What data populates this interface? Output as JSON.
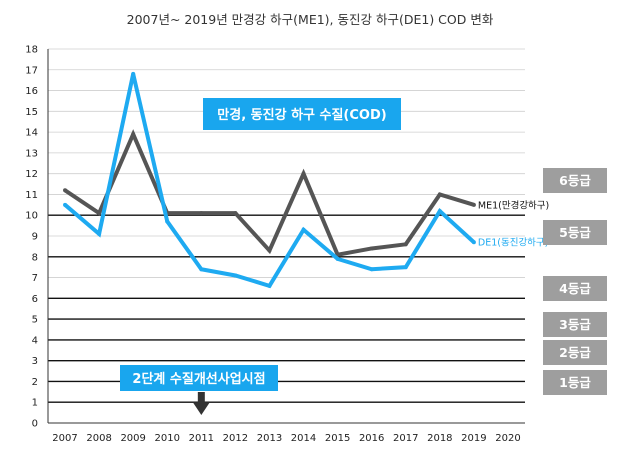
{
  "chart_data": {
    "type": "line",
    "title": "2007년~ 2019년 만경강 하구(ME1), 동진강 하구(DE1) COD 변화",
    "xlabel": "",
    "ylabel": "",
    "categories": [
      "2007",
      "2008",
      "2009",
      "2010",
      "2011",
      "2012",
      "2013",
      "2014",
      "2015",
      "2016",
      "2017",
      "2018",
      "2019",
      "2020"
    ],
    "ylim": [
      0,
      18
    ],
    "yticks": [
      0,
      1,
      2,
      3,
      4,
      5,
      6,
      7,
      8,
      9,
      10,
      11,
      12,
      13,
      14,
      15,
      16,
      17,
      18
    ],
    "grid": "horizontal",
    "series": [
      {
        "name": "ME1(만경강하구)",
        "color": "#555555",
        "values": [
          11.2,
          10.1,
          13.9,
          10.1,
          10.1,
          10.1,
          8.3,
          12.0,
          8.1,
          8.4,
          8.6,
          11.0,
          10.5,
          null
        ]
      },
      {
        "name": "DE1(동진강하구)",
        "color": "#1eaaf1",
        "values": [
          10.5,
          9.1,
          16.8,
          9.7,
          7.4,
          7.1,
          6.6,
          9.3,
          7.9,
          7.4,
          7.5,
          10.2,
          8.7,
          null
        ]
      }
    ],
    "threshold_lines": [
      10,
      8,
      6,
      5,
      4,
      3,
      2,
      1
    ],
    "grades": [
      "6등급",
      "5등급",
      "4등급",
      "3등급",
      "2등급",
      "1등급"
    ],
    "callout_main": "만경, 동진강 하구 수질(COD)",
    "callout_project": "2단계 수질개선사업시점",
    "callout_project_year": "2011"
  }
}
